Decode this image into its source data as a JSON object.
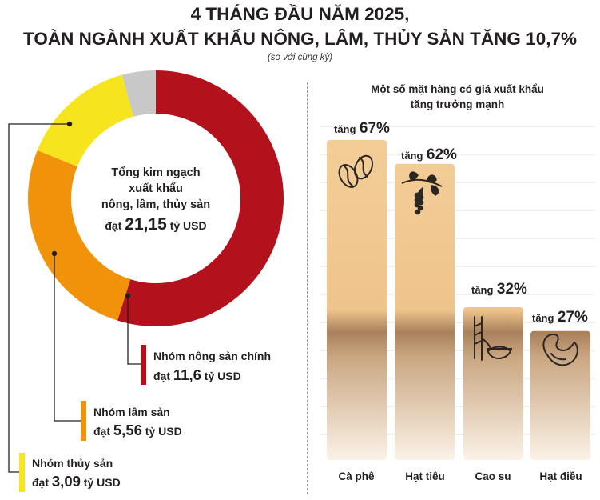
{
  "header": {
    "title_line1": "4 THÁNG ĐẦU NĂM 2025,",
    "title_line2": "TOÀN NGÀNH XUẤT KHẨU NÔNG, LÂM, THỦY SẢN TĂNG 10,7%",
    "subtitle": "(so với cùng kỳ)"
  },
  "chart_data": [
    {
      "type": "pie",
      "center_text": [
        "Tổng kim ngạch",
        "xuất khẩu",
        "nông, lâm, thủy sản"
      ],
      "center_value_prefix": "đạt",
      "center_value": "21,15",
      "center_value_unit": "tỷ USD",
      "total": 21.15,
      "unit": "tỷ USD",
      "slices": [
        {
          "label": "Nhóm nông sản chính",
          "prefix": "đạt",
          "value_text": "11,6",
          "unit": "tỷ USD",
          "value": 11.6,
          "color": "#b3121d"
        },
        {
          "label": "Nhóm lâm sản",
          "prefix": "đạt",
          "value_text": "5,56",
          "unit": "tỷ USD",
          "value": 5.56,
          "color": "#f0930a"
        },
        {
          "label": "Nhóm thủy sản",
          "prefix": "đạt",
          "value_text": "3,09",
          "unit": "tỷ USD",
          "value": 3.09,
          "color": "#f5e41e"
        },
        {
          "label": "",
          "value": 0.9,
          "color": "#c8c8c8"
        }
      ]
    },
    {
      "type": "bar",
      "title_lines": [
        "Một số mặt hàng có giá xuất khẩu",
        "tăng trưởng mạnh"
      ],
      "categories": [
        "Cà phê",
        "Hạt tiêu",
        "Cao su",
        "Hạt điều"
      ],
      "values": [
        67,
        62,
        32,
        27
      ],
      "value_prefix": "tăng",
      "value_suffix": "%",
      "icons": [
        "coffee-beans-icon",
        "pepper-branch-icon",
        "rubber-tapping-icon",
        "cashew-icon"
      ],
      "ylim": [
        0,
        67
      ],
      "grid": true
    }
  ]
}
